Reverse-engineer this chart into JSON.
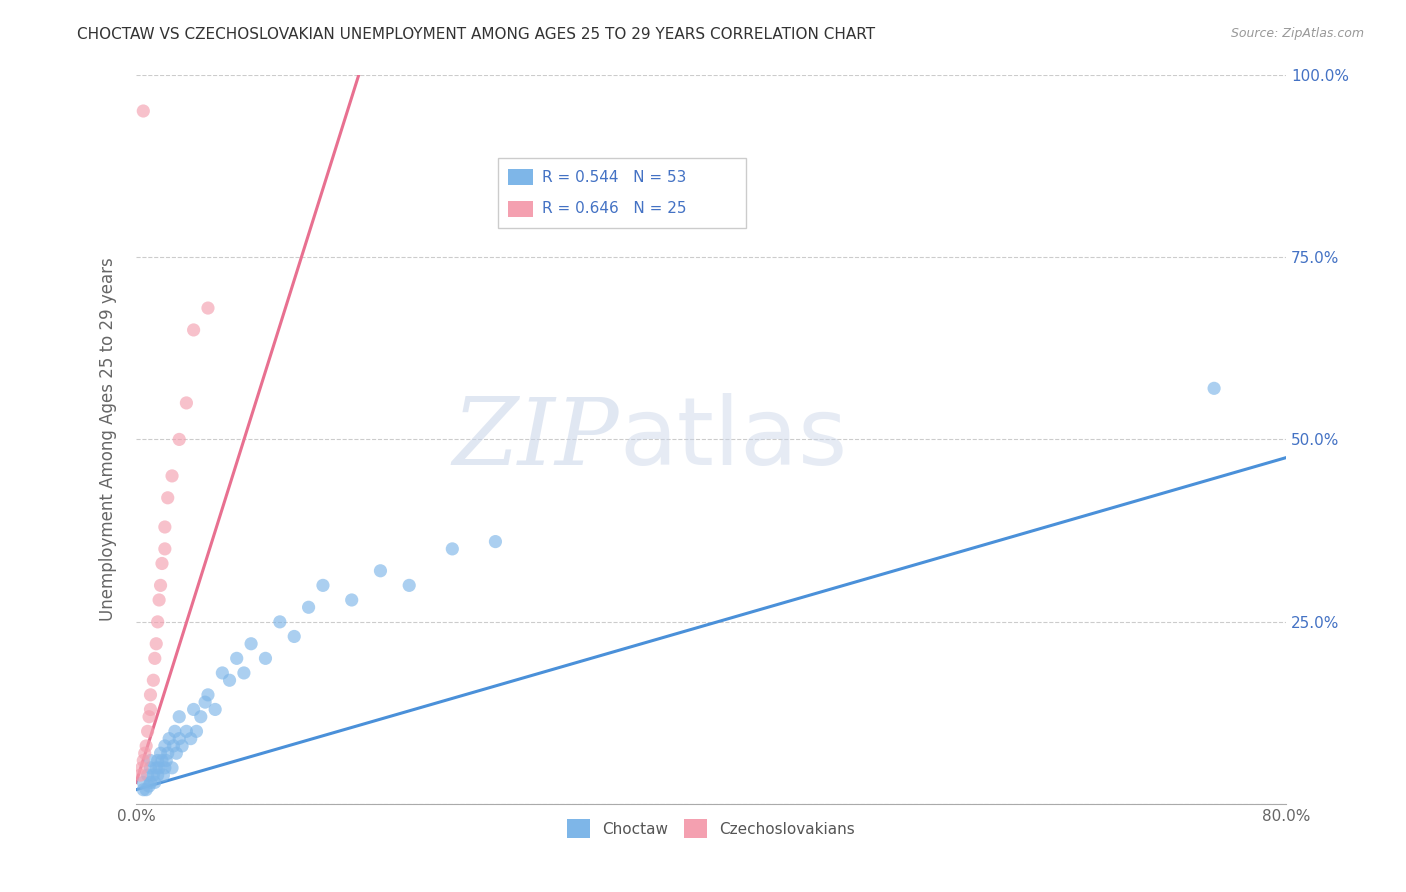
{
  "title": "CHOCTAW VS CZECHOSLOVAKIAN UNEMPLOYMENT AMONG AGES 25 TO 29 YEARS CORRELATION CHART",
  "source": "Source: ZipAtlas.com",
  "ylabel": "Unemployment Among Ages 25 to 29 years",
  "xlim": [
    0.0,
    0.8
  ],
  "ylim": [
    0.0,
    1.0
  ],
  "xticks": [
    0.0,
    0.1,
    0.2,
    0.3,
    0.4,
    0.5,
    0.6,
    0.7,
    0.8
  ],
  "xticklabels": [
    "0.0%",
    "",
    "",
    "",
    "",
    "",
    "",
    "",
    "80.0%"
  ],
  "yticks": [
    0.0,
    0.25,
    0.5,
    0.75,
    1.0
  ],
  "right_yticklabels": [
    "",
    "25.0%",
    "50.0%",
    "75.0%",
    "100.0%"
  ],
  "choctaw_color": "#7EB6E8",
  "czechoslovakian_color": "#F4A0B0",
  "choctaw_line_color": "#4A90D9",
  "czechoslovakian_line_color": "#E87090",
  "legend_text_color": "#4472C4",
  "choctaw_scatter_x": [
    0.005,
    0.005,
    0.007,
    0.008,
    0.009,
    0.01,
    0.01,
    0.01,
    0.012,
    0.013,
    0.014,
    0.015,
    0.015,
    0.016,
    0.017,
    0.018,
    0.019,
    0.02,
    0.02,
    0.021,
    0.022,
    0.023,
    0.025,
    0.026,
    0.027,
    0.028,
    0.03,
    0.03,
    0.032,
    0.035,
    0.038,
    0.04,
    0.042,
    0.045,
    0.048,
    0.05,
    0.055,
    0.06,
    0.065,
    0.07,
    0.075,
    0.08,
    0.09,
    0.1,
    0.11,
    0.12,
    0.13,
    0.15,
    0.17,
    0.19,
    0.22,
    0.25,
    0.75
  ],
  "choctaw_scatter_y": [
    0.02,
    0.03,
    0.02,
    0.04,
    0.025,
    0.03,
    0.05,
    0.06,
    0.04,
    0.03,
    0.05,
    0.04,
    0.06,
    0.05,
    0.07,
    0.06,
    0.04,
    0.05,
    0.08,
    0.06,
    0.07,
    0.09,
    0.05,
    0.08,
    0.1,
    0.07,
    0.09,
    0.12,
    0.08,
    0.1,
    0.09,
    0.13,
    0.1,
    0.12,
    0.14,
    0.15,
    0.13,
    0.18,
    0.17,
    0.2,
    0.18,
    0.22,
    0.2,
    0.25,
    0.23,
    0.27,
    0.3,
    0.28,
    0.32,
    0.3,
    0.35,
    0.36,
    0.57
  ],
  "czech_scatter_x": [
    0.003,
    0.004,
    0.005,
    0.006,
    0.007,
    0.008,
    0.009,
    0.01,
    0.01,
    0.012,
    0.013,
    0.014,
    0.015,
    0.016,
    0.017,
    0.018,
    0.02,
    0.02,
    0.022,
    0.025,
    0.03,
    0.035,
    0.04,
    0.05,
    0.005
  ],
  "czech_scatter_y": [
    0.04,
    0.05,
    0.06,
    0.07,
    0.08,
    0.1,
    0.12,
    0.13,
    0.15,
    0.17,
    0.2,
    0.22,
    0.25,
    0.28,
    0.3,
    0.33,
    0.35,
    0.38,
    0.42,
    0.45,
    0.5,
    0.55,
    0.65,
    0.68,
    0.95
  ],
  "choctaw_trend_x": [
    0.0,
    0.8
  ],
  "choctaw_trend_y": [
    0.02,
    0.475
  ],
  "czech_trend_x": [
    0.0,
    0.155
  ],
  "czech_trend_y": [
    0.03,
    1.0
  ],
  "watermark_zip": "ZIP",
  "watermark_atlas": "atlas",
  "background_color": "#FFFFFF",
  "grid_color": "#CCCCCC"
}
